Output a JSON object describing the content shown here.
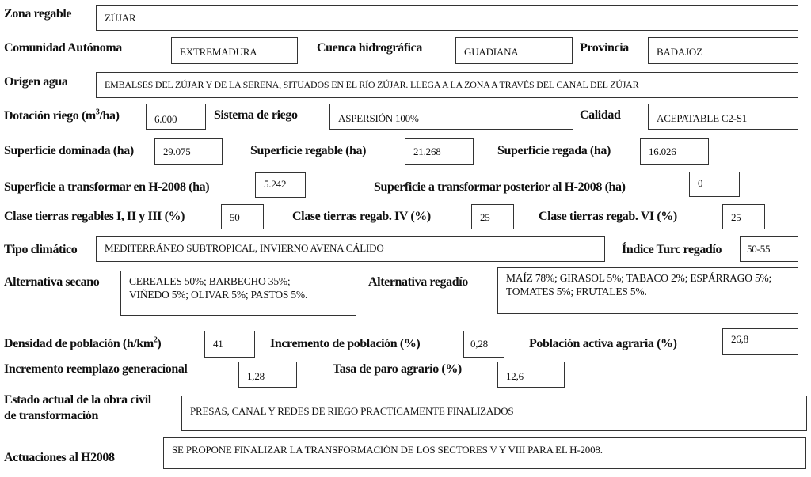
{
  "zona_regable": {
    "label": "Zona regable",
    "value": "ZÚJAR"
  },
  "comunidad": {
    "label": "Comunidad Autónoma",
    "value": "EXTREMADURA"
  },
  "cuenca": {
    "label": "Cuenca hidrográfica",
    "value": "GUADIANA"
  },
  "provincia": {
    "label": "Provincia",
    "value": "BADAJOZ"
  },
  "origen_agua": {
    "label": "Origen  agua",
    "value": "EMBALSES DEL ZÚJAR Y DE LA SERENA, SITUADOS EN EL RÍO ZÚJAR. LLEGA A LA ZONA A TRAVÉS DEL CANAL DEL ZÚJAR"
  },
  "dotacion": {
    "label_pre": "Dotación riego (m",
    "label_sup": "3",
    "label_post": "/ha)",
    "value": "6.000"
  },
  "sistema_riego": {
    "label": "Sistema de riego",
    "value": "ASPERSIÓN 100%"
  },
  "calidad": {
    "label": "Calidad",
    "value": "ACEPATABLE C2-S1"
  },
  "sup_dominada": {
    "label": "Superficie dominada (ha)",
    "value": "29.075"
  },
  "sup_regable": {
    "label": "Superficie regable (ha)",
    "value": "21.268"
  },
  "sup_regada": {
    "label": "Superficie regada (ha)",
    "value": "16.026"
  },
  "sup_transformar_2008": {
    "label": "Superficie a transformar en H-2008 (ha)",
    "value": "5.242"
  },
  "sup_transformar_post": {
    "label": "Superficie a transformar posterior al H-2008 (ha)",
    "value": "0"
  },
  "clase_i_iii": {
    "label": "Clase tierras regables I, II y III (%)",
    "value": "50"
  },
  "clase_iv": {
    "label": "Clase tierras regab. IV (%)",
    "value": "25"
  },
  "clase_vi": {
    "label": "Clase tierras regab. VI (%)",
    "value": "25"
  },
  "tipo_climatico": {
    "label": "Tipo climático",
    "value": "MEDITERRÁNEO SUBTROPICAL, INVIERNO AVENA CÁLIDO"
  },
  "indice_turc": {
    "label": "Índice Turc regadío",
    "value": "50-55"
  },
  "alt_secano": {
    "label": "Alternativa secano",
    "value": "CEREALES 50%; BARBECHO 35%; VIÑEDO 5%; OLIVAR 5%; PASTOS 5%."
  },
  "alt_regadio": {
    "label": "Alternativa regadío",
    "value": "MAÍZ 78%; GIRASOL 5%; TABACO 2%; ESPÁRRAGO 5%; TOMATES 5%; FRUTALES 5%."
  },
  "densidad": {
    "label_pre": "Densidad de población  (h/km",
    "label_sup": "2",
    "label_post": ")",
    "value": "41"
  },
  "incremento_poblacion": {
    "label": "Incremento de población (%)",
    "value": "0,28"
  },
  "poblacion_activa": {
    "label": "Población activa agraria (%)",
    "value": "26,8"
  },
  "reemplazo": {
    "label": "Incremento reemplazo generacional",
    "value": "1,28"
  },
  "paro": {
    "label": "Tasa de paro agrario (%)",
    "value": "12,6"
  },
  "estado_obra": {
    "label_line1": "Estado actual de la obra civil",
    "label_line2": "de transformación",
    "value": "PRESAS, CANAL Y REDES DE RIEGO PRACTICAMENTE FINALIZADOS"
  },
  "actuaciones": {
    "label": "Actuaciones al H2008",
    "value": "SE PROPONE FINALIZAR LA TRANSFORMACIÓN DE LOS SECTORES V Y VIII PARA EL H-2008."
  }
}
